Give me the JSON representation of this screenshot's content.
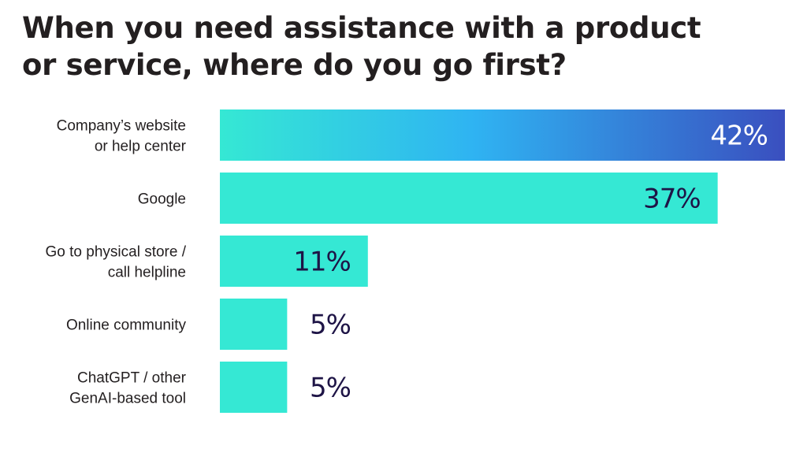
{
  "title_lines": [
    "When you need assistance with a product",
    "or service, where do you go first?"
  ],
  "colors": {
    "bar": "#35e8d4",
    "highlight_gradient": [
      "#35e8d4",
      "#2fb3f2",
      "#3a4fbf"
    ],
    "value_dark": "#1e1446",
    "value_on_highlight": "#ffffff",
    "label": "#231f20"
  },
  "chart_data": {
    "type": "bar",
    "orientation": "horizontal",
    "title": "When you need assistance with a product or service, where do you go first?",
    "categories": [
      [
        "Company’s website",
        "or help center"
      ],
      [
        "Google"
      ],
      [
        "Go to physical store /",
        "call helpline"
      ],
      [
        "Online community"
      ],
      [
        "ChatGPT / other",
        "GenAI-based tool"
      ]
    ],
    "values": [
      42,
      37,
      11,
      5,
      5
    ],
    "value_labels": [
      "42%",
      "37%",
      "11%",
      "5%",
      "5%"
    ],
    "xlim": [
      0,
      42
    ],
    "highlighted_index": 0,
    "grid": false,
    "legend": "none"
  }
}
